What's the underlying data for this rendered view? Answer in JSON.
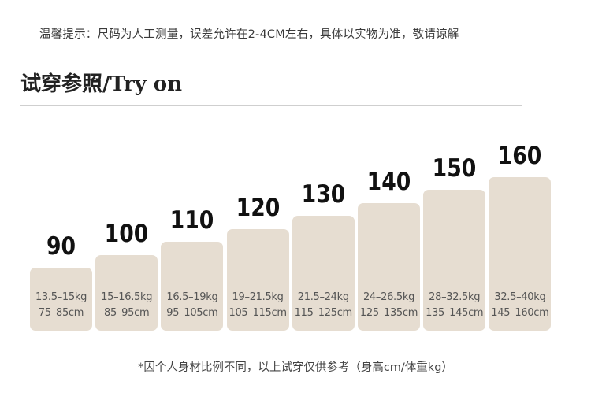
{
  "notice": "温馨提示：尺码为人工测量，误差允许在2-4CM左右，具体以实物为准，敬请谅解",
  "heading": "试穿参照/Try on",
  "footnote": "*因个人身材比例不同，以上试穿仅供参考（身高cm/体重kg）",
  "colors": {
    "bar": "#e6ddd1",
    "label": "#111111",
    "text": "#555555"
  },
  "chart_data": {
    "type": "table",
    "sizes": [
      {
        "size": "90",
        "weight": "13.5–15kg",
        "height": "75–85cm"
      },
      {
        "size": "100",
        "weight": "15–16.5kg",
        "height": "85–95cm"
      },
      {
        "size": "110",
        "weight": "16.5–19kg",
        "height": "95–105cm"
      },
      {
        "size": "120",
        "weight": "19–21.5kg",
        "height": "105–115cm"
      },
      {
        "size": "130",
        "weight": "21.5–24kg",
        "height": "115–125cm"
      },
      {
        "size": "140",
        "weight": "24–26.5kg",
        "height": "125–135cm"
      },
      {
        "size": "150",
        "weight": "28–32.5kg",
        "height": "135–145cm"
      },
      {
        "size": "160",
        "weight": "32.5–40kg",
        "height": "145–160cm"
      }
    ]
  }
}
